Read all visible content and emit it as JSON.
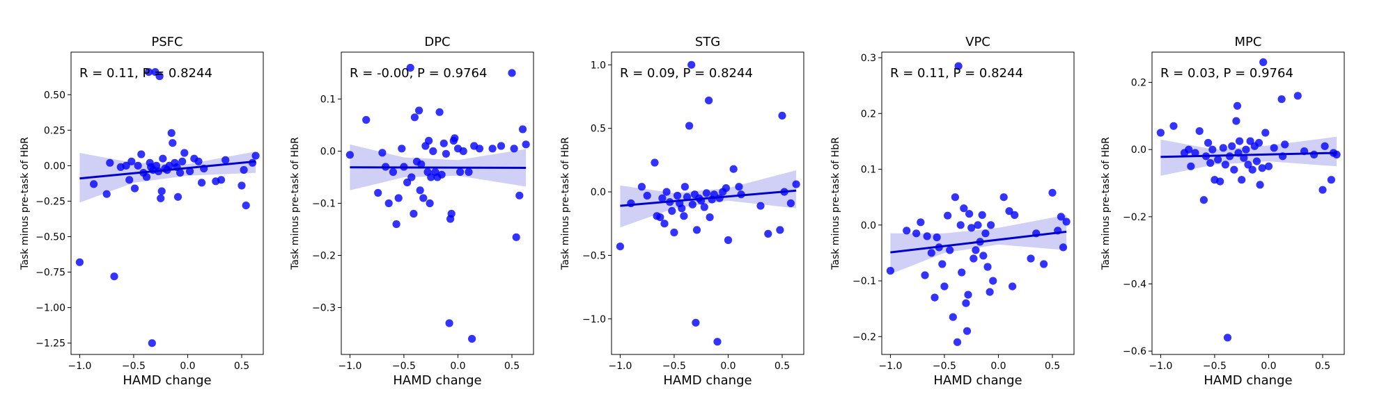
{
  "figure": {
    "xlabel": "HAMD change",
    "ylabel": "Task minus pre-task of HbR",
    "colors": {
      "points": "#0000ff",
      "line": "#0000cc",
      "band": "#c8c8f5",
      "axes": "#000000"
    }
  },
  "chart_data": [
    {
      "type": "scatter",
      "title": "PSFC",
      "annotation": "R = 0.11, P = 0.8244",
      "xlim": [
        -1.08,
        0.7
      ],
      "ylim": [
        -1.33,
        0.8
      ],
      "xticks": [
        -1.0,
        -0.5,
        0.0,
        0.5
      ],
      "xtick_labels": [
        "−1.0",
        "−0.5",
        "0.0",
        "0.5"
      ],
      "yticks": [
        -1.25,
        -1.0,
        -0.75,
        -0.5,
        -0.25,
        0.0,
        0.25,
        0.5
      ],
      "ytick_labels": [
        "−1.25",
        "−1.00",
        "−0.75",
        "−0.50",
        "−0.25",
        "0.00",
        "0.25",
        "0.50"
      ],
      "fit": {
        "x": [
          -1.0,
          0.63
        ],
        "y": [
          -0.09,
          0.03
        ]
      },
      "band": {
        "x": [
          -1.0,
          -0.5,
          0.0,
          0.63
        ],
        "upper": [
          0.09,
          0.02,
          0.01,
          0.1
        ],
        "lower": [
          -0.26,
          -0.12,
          -0.07,
          -0.05
        ]
      },
      "points": [
        [
          -1.0,
          -0.68
        ],
        [
          -0.87,
          -0.13
        ],
        [
          -0.75,
          -0.2
        ],
        [
          -0.72,
          0.02
        ],
        [
          -0.68,
          -0.78
        ],
        [
          -0.62,
          -0.01
        ],
        [
          -0.57,
          0.0
        ],
        [
          -0.54,
          -0.1
        ],
        [
          -0.52,
          0.03
        ],
        [
          -0.49,
          -0.16
        ],
        [
          -0.46,
          0.0
        ],
        [
          -0.43,
          0.08
        ],
        [
          -0.41,
          -0.05
        ],
        [
          -0.38,
          -0.08
        ],
        [
          -0.36,
          0.66
        ],
        [
          -0.35,
          0.02
        ],
        [
          -0.34,
          -0.01
        ],
        [
          -0.33,
          -1.25
        ],
        [
          -0.32,
          -0.03
        ],
        [
          -0.3,
          0.66
        ],
        [
          -0.29,
          0.0
        ],
        [
          -0.27,
          -0.04
        ],
        [
          -0.26,
          0.63
        ],
        [
          -0.25,
          -0.23
        ],
        [
          -0.24,
          -0.18
        ],
        [
          -0.23,
          0.05
        ],
        [
          -0.21,
          -0.02
        ],
        [
          -0.19,
          -0.03
        ],
        [
          -0.17,
          0.0
        ],
        [
          -0.15,
          0.23
        ],
        [
          -0.14,
          0.16
        ],
        [
          -0.12,
          0.02
        ],
        [
          -0.1,
          -0.01
        ],
        [
          -0.09,
          -0.22
        ],
        [
          -0.07,
          -0.05
        ],
        [
          -0.05,
          0.03
        ],
        [
          -0.03,
          0.09
        ],
        [
          0.02,
          -0.04
        ],
        [
          0.06,
          0.05
        ],
        [
          0.1,
          0.03
        ],
        [
          0.13,
          -0.12
        ],
        [
          0.15,
          -0.02
        ],
        [
          0.26,
          -0.11
        ],
        [
          0.31,
          -0.1
        ],
        [
          0.35,
          0.04
        ],
        [
          0.5,
          -0.14
        ],
        [
          0.52,
          -0.03
        ],
        [
          0.54,
          -0.28
        ],
        [
          0.6,
          0.02
        ],
        [
          0.63,
          0.07
        ]
      ]
    },
    {
      "type": "scatter",
      "title": "DPC",
      "annotation": "R = -0.00, P = 0.9764",
      "xlim": [
        -1.08,
        0.7
      ],
      "ylim": [
        -0.39,
        0.19
      ],
      "xticks": [
        -1.0,
        -0.5,
        0.0,
        0.5
      ],
      "xtick_labels": [
        "−1.0",
        "−0.5",
        "0.0",
        "0.5"
      ],
      "yticks": [
        -0.3,
        -0.2,
        -0.1,
        0.0,
        0.1
      ],
      "ytick_labels": [
        "−0.3",
        "−0.2",
        "−0.1",
        "0.0",
        "0.1"
      ],
      "fit": {
        "x": [
          -1.0,
          0.63
        ],
        "y": [
          -0.031,
          -0.032
        ]
      },
      "band": {
        "x": [
          -1.0,
          -0.5,
          0.0,
          0.63
        ],
        "upper": [
          0.013,
          -0.012,
          -0.017,
          0.004
        ],
        "lower": [
          -0.075,
          -0.05,
          -0.047,
          -0.068
        ]
      },
      "points": [
        [
          -1.0,
          -0.007
        ],
        [
          -0.85,
          0.06
        ],
        [
          -0.74,
          -0.08
        ],
        [
          -0.7,
          -0.003
        ],
        [
          -0.67,
          -0.03
        ],
        [
          -0.64,
          -0.1
        ],
        [
          -0.6,
          -0.04
        ],
        [
          -0.57,
          -0.14
        ],
        [
          -0.55,
          -0.09
        ],
        [
          -0.52,
          0.005
        ],
        [
          -0.5,
          -0.03
        ],
        [
          -0.47,
          -0.06
        ],
        [
          -0.44,
          0.16
        ],
        [
          -0.43,
          -0.05
        ],
        [
          -0.41,
          -0.12
        ],
        [
          -0.4,
          0.065
        ],
        [
          -0.38,
          -0.02
        ],
        [
          -0.36,
          0.078
        ],
        [
          -0.35,
          -0.075
        ],
        [
          -0.34,
          -0.025
        ],
        [
          -0.32,
          -0.09
        ],
        [
          -0.3,
          0.01
        ],
        [
          -0.28,
          -0.04
        ],
        [
          -0.27,
          0.02
        ],
        [
          -0.26,
          -0.1
        ],
        [
          -0.25,
          -0.05
        ],
        [
          -0.23,
          0.0
        ],
        [
          -0.21,
          -0.04
        ],
        [
          -0.19,
          -0.05
        ],
        [
          -0.17,
          0.075
        ],
        [
          -0.15,
          -0.045
        ],
        [
          -0.13,
          0.015
        ],
        [
          -0.11,
          -0.005
        ],
        [
          -0.08,
          -0.33
        ],
        [
          -0.07,
          -0.13
        ],
        [
          -0.06,
          -0.12
        ],
        [
          -0.04,
          0.02
        ],
        [
          -0.03,
          0.025
        ],
        [
          0.0,
          0.005
        ],
        [
          0.02,
          -0.04
        ],
        [
          0.05,
          0.0
        ],
        [
          0.1,
          -0.04
        ],
        [
          0.13,
          -0.36
        ],
        [
          0.15,
          0.01
        ],
        [
          0.2,
          0.005
        ],
        [
          0.32,
          0.005
        ],
        [
          0.4,
          0.01
        ],
        [
          0.5,
          0.15
        ],
        [
          0.52,
          0.005
        ],
        [
          0.54,
          -0.165
        ],
        [
          0.57,
          -0.085
        ],
        [
          0.6,
          0.042
        ],
        [
          0.63,
          0.013
        ]
      ]
    },
    {
      "type": "scatter",
      "title": "STG",
      "annotation": "R = 0.09, P = 0.8244",
      "xlim": [
        -1.08,
        0.7
      ],
      "ylim": [
        -1.28,
        1.1
      ],
      "xticks": [
        -1.0,
        -0.5,
        0.0,
        0.5
      ],
      "xtick_labels": [
        "−1.0",
        "−0.5",
        "0.0",
        "0.5"
      ],
      "yticks": [
        -1.0,
        -0.5,
        0.0,
        0.5,
        1.0
      ],
      "ytick_labels": [
        "−1.0",
        "−0.5",
        "0.0",
        "0.5",
        "1.0"
      ],
      "fit": {
        "x": [
          -1.0,
          0.63
        ],
        "y": [
          -0.11,
          0.01
        ]
      },
      "band": {
        "x": [
          -1.0,
          -0.5,
          0.0,
          0.63
        ],
        "upper": [
          0.05,
          -0.01,
          0.03,
          0.17
        ],
        "lower": [
          -0.28,
          -0.13,
          -0.07,
          -0.13
        ]
      },
      "points": [
        [
          -1.0,
          -0.43
        ],
        [
          -0.9,
          -0.09
        ],
        [
          -0.8,
          0.04
        ],
        [
          -0.75,
          -0.03
        ],
        [
          -0.68,
          0.23
        ],
        [
          -0.66,
          -0.19
        ],
        [
          -0.63,
          -0.2
        ],
        [
          -0.61,
          -0.05
        ],
        [
          -0.59,
          -0.25
        ],
        [
          -0.57,
          0.0
        ],
        [
          -0.54,
          -0.08
        ],
        [
          -0.52,
          -0.15
        ],
        [
          -0.5,
          -0.32
        ],
        [
          -0.47,
          -0.03
        ],
        [
          -0.45,
          -0.09
        ],
        [
          -0.43,
          -0.13
        ],
        [
          -0.41,
          -0.19
        ],
        [
          -0.4,
          0.04
        ],
        [
          -0.38,
          -0.04
        ],
        [
          -0.36,
          0.52
        ],
        [
          -0.34,
          1.0
        ],
        [
          -0.33,
          -0.1
        ],
        [
          -0.31,
          -0.02
        ],
        [
          -0.3,
          -1.03
        ],
        [
          -0.29,
          -0.3
        ],
        [
          -0.27,
          -0.05
        ],
        [
          -0.25,
          -0.07
        ],
        [
          -0.22,
          -0.12
        ],
        [
          -0.2,
          -0.01
        ],
        [
          -0.18,
          0.72
        ],
        [
          -0.17,
          -0.2
        ],
        [
          -0.15,
          -0.06
        ],
        [
          -0.13,
          -0.02
        ],
        [
          -0.1,
          -1.18
        ],
        [
          -0.08,
          -0.05
        ],
        [
          -0.05,
          0.0
        ],
        [
          -0.02,
          0.03
        ],
        [
          0.0,
          -0.38
        ],
        [
          0.05,
          0.18
        ],
        [
          0.1,
          0.04
        ],
        [
          0.12,
          -0.02
        ],
        [
          0.3,
          -0.11
        ],
        [
          0.37,
          -0.33
        ],
        [
          0.48,
          -0.3
        ],
        [
          0.5,
          0.6
        ],
        [
          0.52,
          0.0
        ],
        [
          0.58,
          -0.09
        ],
        [
          0.63,
          0.06
        ]
      ]
    },
    {
      "type": "scatter",
      "title": "VPC",
      "annotation": "R = 0.11, P = 0.8244",
      "xlim": [
        -1.08,
        0.7
      ],
      "ylim": [
        -0.232,
        0.31
      ],
      "xticks": [
        -1.0,
        -0.5,
        0.0,
        0.5
      ],
      "xtick_labels": [
        "−1.0",
        "−0.5",
        "0.0",
        "0.5"
      ],
      "yticks": [
        -0.2,
        -0.1,
        0.0,
        0.1,
        0.2,
        0.3
      ],
      "ytick_labels": [
        "−0.2",
        "−0.1",
        "0.0",
        "0.1",
        "0.2",
        "0.3"
      ],
      "fit": {
        "x": [
          -1.0,
          0.63
        ],
        "y": [
          -0.049,
          -0.012
        ]
      },
      "band": {
        "x": [
          -1.0,
          -0.5,
          0.0,
          0.63
        ],
        "upper": [
          -0.015,
          -0.015,
          -0.005,
          0.018
        ],
        "lower": [
          -0.088,
          -0.05,
          -0.035,
          -0.045
        ]
      },
      "points": [
        [
          -1.0,
          -0.082
        ],
        [
          -0.85,
          -0.01
        ],
        [
          -0.76,
          -0.015
        ],
        [
          -0.72,
          0.005
        ],
        [
          -0.68,
          -0.09
        ],
        [
          -0.66,
          -0.02
        ],
        [
          -0.62,
          -0.05
        ],
        [
          -0.59,
          -0.13
        ],
        [
          -0.57,
          -0.022
        ],
        [
          -0.55,
          -0.04
        ],
        [
          -0.52,
          -0.07
        ],
        [
          -0.5,
          -0.11
        ],
        [
          -0.47,
          0.017
        ],
        [
          -0.45,
          -0.045
        ],
        [
          -0.42,
          -0.165
        ],
        [
          -0.4,
          0.05
        ],
        [
          -0.38,
          -0.21
        ],
        [
          -0.37,
          0.285
        ],
        [
          -0.35,
          0.0
        ],
        [
          -0.34,
          -0.085
        ],
        [
          -0.32,
          0.03
        ],
        [
          -0.3,
          -0.14
        ],
        [
          -0.29,
          -0.19
        ],
        [
          -0.28,
          -0.125
        ],
        [
          -0.27,
          0.02
        ],
        [
          -0.25,
          -0.005
        ],
        [
          -0.23,
          -0.06
        ],
        [
          -0.21,
          -0.045
        ],
        [
          -0.19,
          0.0
        ],
        [
          -0.17,
          -0.03
        ],
        [
          -0.15,
          0.018
        ],
        [
          -0.14,
          -0.055
        ],
        [
          -0.12,
          -0.015
        ],
        [
          -0.1,
          -0.075
        ],
        [
          -0.08,
          -0.12
        ],
        [
          -0.07,
          0.0
        ],
        [
          -0.05,
          -0.1
        ],
        [
          0.05,
          0.05
        ],
        [
          0.1,
          0.025
        ],
        [
          0.13,
          -0.11
        ],
        [
          0.15,
          0.018
        ],
        [
          0.3,
          -0.06
        ],
        [
          0.35,
          -0.015
        ],
        [
          0.42,
          -0.07
        ],
        [
          0.5,
          0.058
        ],
        [
          0.55,
          -0.01
        ],
        [
          0.58,
          0.015
        ],
        [
          0.6,
          -0.04
        ],
        [
          0.63,
          0.006
        ]
      ]
    },
    {
      "type": "scatter",
      "title": "MPC",
      "annotation": "R = 0.03, P = 0.9764",
      "xlim": [
        -1.08,
        0.7
      ],
      "ylim": [
        -0.61,
        0.29
      ],
      "xticks": [
        -1.0,
        -0.5,
        0.0,
        0.5
      ],
      "xtick_labels": [
        "−1.0",
        "−0.5",
        "0.0",
        "0.5"
      ],
      "yticks": [
        -0.6,
        -0.4,
        -0.2,
        0.0,
        0.2
      ],
      "ytick_labels": [
        "−0.6",
        "−0.4",
        "−0.2",
        "0.0",
        "0.2"
      ],
      "fit": {
        "x": [
          -1.0,
          0.63
        ],
        "y": [
          -0.022,
          -0.01
        ]
      },
      "band": {
        "x": [
          -1.0,
          -0.5,
          0.0,
          0.63
        ],
        "upper": [
          0.03,
          0.0,
          0.012,
          0.038
        ],
        "lower": [
          -0.078,
          -0.045,
          -0.035,
          -0.05
        ]
      },
      "points": [
        [
          -1.0,
          0.05
        ],
        [
          -0.88,
          0.07
        ],
        [
          -0.78,
          -0.01
        ],
        [
          -0.74,
          0.0
        ],
        [
          -0.72,
          -0.05
        ],
        [
          -0.68,
          -0.01
        ],
        [
          -0.64,
          0.055
        ],
        [
          -0.6,
          -0.15
        ],
        [
          -0.58,
          -0.02
        ],
        [
          -0.56,
          0.02
        ],
        [
          -0.54,
          -0.04
        ],
        [
          -0.52,
          0.0
        ],
        [
          -0.5,
          -0.09
        ],
        [
          -0.47,
          -0.03
        ],
        [
          -0.45,
          -0.095
        ],
        [
          -0.42,
          0.005
        ],
        [
          -0.4,
          -0.045
        ],
        [
          -0.38,
          -0.56
        ],
        [
          -0.36,
          -0.02
        ],
        [
          -0.34,
          0.01
        ],
        [
          -0.32,
          -0.06
        ],
        [
          -0.3,
          0.085
        ],
        [
          -0.29,
          0.13
        ],
        [
          -0.28,
          -0.01
        ],
        [
          -0.27,
          0.025
        ],
        [
          -0.25,
          -0.09
        ],
        [
          -0.23,
          -0.025
        ],
        [
          -0.21,
          0.0
        ],
        [
          -0.19,
          -0.045
        ],
        [
          -0.17,
          0.025
        ],
        [
          -0.15,
          -0.06
        ],
        [
          -0.13,
          0.01
        ],
        [
          -0.11,
          -0.035
        ],
        [
          -0.09,
          0.02
        ],
        [
          -0.08,
          -0.105
        ],
        [
          -0.06,
          -0.055
        ],
        [
          -0.05,
          0.26
        ],
        [
          -0.03,
          0.05
        ],
        [
          0.0,
          -0.05
        ],
        [
          0.05,
          0.005
        ],
        [
          0.12,
          0.15
        ],
        [
          0.13,
          -0.02
        ],
        [
          0.15,
          0.015
        ],
        [
          0.27,
          0.16
        ],
        [
          0.33,
          -0.005
        ],
        [
          0.42,
          -0.015
        ],
        [
          0.5,
          -0.12
        ],
        [
          0.52,
          0.01
        ],
        [
          0.58,
          -0.09
        ],
        [
          0.6,
          -0.01
        ],
        [
          0.63,
          -0.015
        ]
      ]
    }
  ]
}
